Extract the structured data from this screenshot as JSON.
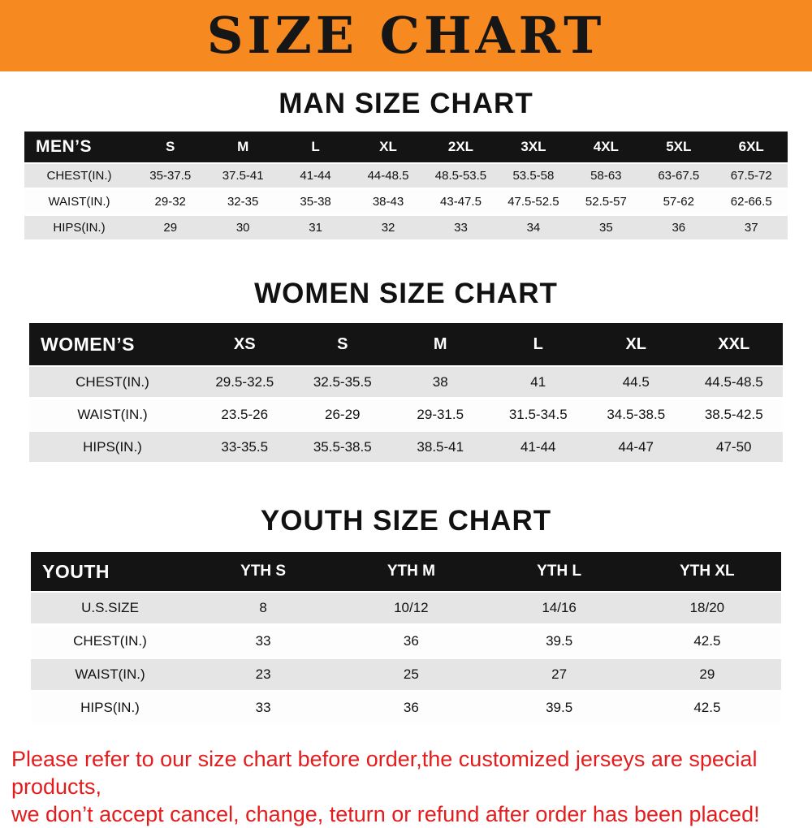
{
  "banner": {
    "title": "SIZE CHART",
    "bg_color": "#f6891f",
    "text_color": "#161616"
  },
  "headings": {
    "men": "MAN SIZE CHART",
    "women": "WOMEN SIZE CHART",
    "youth": "YOUTH SIZE CHART"
  },
  "tables": {
    "men": {
      "header": [
        "MEN’S",
        "S",
        "M",
        "L",
        "XL",
        "2XL",
        "3XL",
        "4XL",
        "5XL",
        "6XL"
      ],
      "rows": [
        {
          "label": "CHEST(IN.)",
          "values": [
            "35-37.5",
            "37.5-41",
            "41-44",
            "44-48.5",
            "48.5-53.5",
            "53.5-58",
            "58-63",
            "63-67.5",
            "67.5-72"
          ]
        },
        {
          "label": "WAIST(IN.)",
          "values": [
            "29-32",
            "32-35",
            "35-38",
            "38-43",
            "43-47.5",
            "47.5-52.5",
            "52.5-57",
            "57-62",
            "62-66.5"
          ]
        },
        {
          "label": "HIPS(IN.)",
          "values": [
            "29",
            "30",
            "31",
            "32",
            "33",
            "34",
            "35",
            "36",
            "37"
          ]
        }
      ]
    },
    "women": {
      "header": [
        "WOMEN’S",
        "XS",
        "S",
        "M",
        "L",
        "XL",
        "XXL"
      ],
      "rows": [
        {
          "label": "CHEST(IN.)",
          "values": [
            "29.5-32.5",
            "32.5-35.5",
            "38",
            "41",
            "44.5",
            "44.5-48.5"
          ]
        },
        {
          "label": "WAIST(IN.)",
          "values": [
            "23.5-26",
            "26-29",
            "29-31.5",
            "31.5-34.5",
            "34.5-38.5",
            "38.5-42.5"
          ]
        },
        {
          "label": "HIPS(IN.)",
          "values": [
            "33-35.5",
            "35.5-38.5",
            "38.5-41",
            "41-44",
            "44-47",
            "47-50"
          ]
        }
      ]
    },
    "youth": {
      "header": [
        "YOUTH",
        "YTH S",
        "YTH M",
        "YTH L",
        "YTH XL"
      ],
      "rows": [
        {
          "label": "U.S.SIZE",
          "values": [
            "8",
            "10/12",
            "14/16",
            "18/20"
          ]
        },
        {
          "label": "CHEST(IN.)",
          "values": [
            "33",
            "36",
            "39.5",
            "42.5"
          ]
        },
        {
          "label": "WAIST(IN.)",
          "values": [
            "23",
            "25",
            "27",
            "29"
          ]
        },
        {
          "label": "HIPS(IN.)",
          "values": [
            "33",
            "36",
            "39.5",
            "42.5"
          ]
        }
      ]
    }
  },
  "footer": {
    "line1": "Please refer to our size chart before order,the customized jerseys are special products,",
    "line2": "we don’t accept cancel, change, teturn or refund after order has been placed!",
    "color": "#e31d1d"
  },
  "chart_data": [
    {
      "type": "table",
      "title": "MAN SIZE CHART",
      "columns": [
        "MEN'S",
        "S",
        "M",
        "L",
        "XL",
        "2XL",
        "3XL",
        "4XL",
        "5XL",
        "6XL"
      ],
      "rows": [
        [
          "CHEST(IN.)",
          "35-37.5",
          "37.5-41",
          "41-44",
          "44-48.5",
          "48.5-53.5",
          "53.5-58",
          "58-63",
          "63-67.5",
          "67.5-72"
        ],
        [
          "WAIST(IN.)",
          "29-32",
          "32-35",
          "35-38",
          "38-43",
          "43-47.5",
          "47.5-52.5",
          "52.5-57",
          "57-62",
          "62-66.5"
        ],
        [
          "HIPS(IN.)",
          "29",
          "30",
          "31",
          "32",
          "33",
          "34",
          "35",
          "36",
          "37"
        ]
      ]
    },
    {
      "type": "table",
      "title": "WOMEN SIZE CHART",
      "columns": [
        "WOMEN'S",
        "XS",
        "S",
        "M",
        "L",
        "XL",
        "XXL"
      ],
      "rows": [
        [
          "CHEST(IN.)",
          "29.5-32.5",
          "32.5-35.5",
          "38",
          "41",
          "44.5",
          "44.5-48.5"
        ],
        [
          "WAIST(IN.)",
          "23.5-26",
          "26-29",
          "29-31.5",
          "31.5-34.5",
          "34.5-38.5",
          "38.5-42.5"
        ],
        [
          "HIPS(IN.)",
          "33-35.5",
          "35.5-38.5",
          "38.5-41",
          "41-44",
          "44-47",
          "47-50"
        ]
      ]
    },
    {
      "type": "table",
      "title": "YOUTH SIZE CHART",
      "columns": [
        "YOUTH",
        "YTH S",
        "YTH M",
        "YTH L",
        "YTH XL"
      ],
      "rows": [
        [
          "U.S.SIZE",
          "8",
          "10/12",
          "14/16",
          "18/20"
        ],
        [
          "CHEST(IN.)",
          "33",
          "36",
          "39.5",
          "42.5"
        ],
        [
          "WAIST(IN.)",
          "23",
          "25",
          "27",
          "29"
        ],
        [
          "HIPS(IN.)",
          "33",
          "36",
          "39.5",
          "42.5"
        ]
      ]
    }
  ]
}
